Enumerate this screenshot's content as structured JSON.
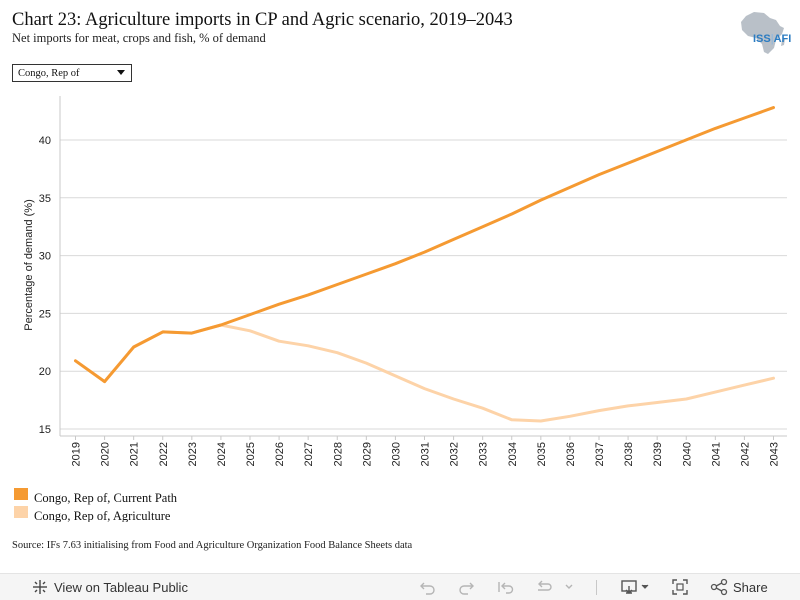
{
  "header": {
    "title": "Chart 23: Agriculture imports in CP and Agric scenario, 2019–2043",
    "subtitle": "Net imports for meat, crops and fish, % of demand"
  },
  "logo": {
    "brand": "ISS",
    "suffix": "AFI",
    "icon": "africa-map-icon"
  },
  "filter": {
    "selected": "Congo, Rep of"
  },
  "legend": {
    "items": [
      {
        "label": "Congo, Rep of, Current Path",
        "color": "#f59a32"
      },
      {
        "label": "Congo, Rep of, Agriculture",
        "color": "#fdd3a8"
      }
    ]
  },
  "source": "Source: IFs 7.63 initialising from Food and Agriculture Organization Food Balance Sheets data",
  "toolbar": {
    "view_label": "View on Tableau Public",
    "share_label": "Share",
    "icons": [
      "tableau-icon",
      "undo-icon",
      "redo-icon",
      "revert-icon",
      "refresh-icon",
      "download-icon",
      "fullscreen-icon",
      "share-icon"
    ]
  },
  "chart_data": {
    "type": "line",
    "title": "",
    "xlabel": "",
    "ylabel": "Percentage of demand (%)",
    "x": [
      2019,
      2020,
      2021,
      2022,
      2023,
      2024,
      2025,
      2026,
      2027,
      2028,
      2029,
      2030,
      2031,
      2032,
      2033,
      2034,
      2035,
      2036,
      2037,
      2038,
      2039,
      2040,
      2041,
      2042,
      2043
    ],
    "ylim": [
      14.4,
      43.8
    ],
    "yticks": [
      15,
      20,
      25,
      30,
      35,
      40
    ],
    "grid": true,
    "legend_position": "bottom-left",
    "series": [
      {
        "name": "Congo, Rep of, Current Path",
        "color": "#f59a32",
        "values": [
          20.9,
          19.1,
          22.1,
          23.4,
          23.3,
          24.0,
          24.9,
          25.8,
          26.6,
          27.5,
          28.4,
          29.3,
          30.3,
          31.4,
          32.5,
          33.6,
          34.8,
          35.9,
          37.0,
          38.0,
          39.0,
          40.0,
          41.0,
          41.9,
          42.8
        ]
      },
      {
        "name": "Congo, Rep of, Agriculture",
        "color": "#fdd3a8",
        "values": [
          20.9,
          19.1,
          22.1,
          23.4,
          23.3,
          24.0,
          23.5,
          22.6,
          22.2,
          21.6,
          20.7,
          19.6,
          18.5,
          17.6,
          16.8,
          15.8,
          15.7,
          16.1,
          16.6,
          17.0,
          17.3,
          17.6,
          18.2,
          18.8,
          19.4
        ]
      }
    ]
  }
}
